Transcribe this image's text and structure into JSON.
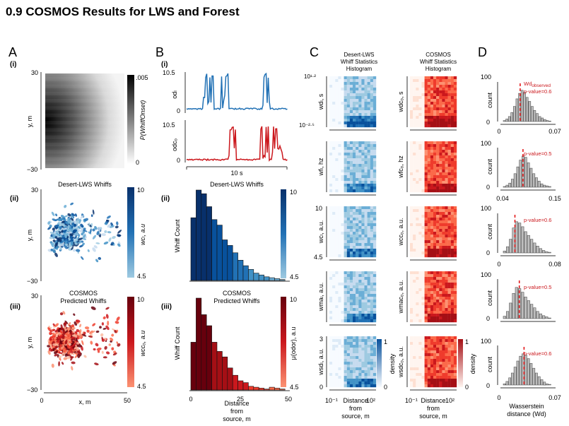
{
  "page_title": "0.9  COSMOS Results for LWS and Forest",
  "panel_letters": [
    "A",
    "B",
    "C",
    "D"
  ],
  "roman": [
    "(i)",
    "(ii)",
    "(iii)"
  ],
  "colors": {
    "blue_dark": "#08306b",
    "blue_mid": "#2171b5",
    "blue_light": "#9ecae1",
    "red_dark": "#67000d",
    "red_mid": "#cb181d",
    "red_light": "#fc9272",
    "gray_hist": "#555555"
  },
  "panelA": {
    "i": {
      "ylabel": "y, m",
      "yticks": [
        "30",
        "−30"
      ],
      "cbar_label": "P(WhiffOnset)",
      "cbar_ticks": [
        ".005",
        "0"
      ]
    },
    "ii": {
      "title": "Desert-LWS Whiffs",
      "ylabel": "y, m",
      "yticks": [
        "30",
        "−30"
      ],
      "cbar_label": "wcₗ, a.u",
      "cbar_ticks": [
        "10",
        "4.5"
      ]
    },
    "iii": {
      "title_line1": "COSMOS",
      "title_line2": "Predicted Whiffs",
      "ylabel": "y, m",
      "yticks": [
        "30",
        "−30"
      ],
      "xlabel": "x, m",
      "xticks": [
        "0",
        "50"
      ],
      "cbar_label": "wcᴄₒ, a.u",
      "cbar_ticks": [
        "10",
        "4.5"
      ]
    }
  },
  "panelB": {
    "i": {
      "top_ylabel": "odₗ",
      "bottom_ylabel": "odᴄₒ",
      "yticks": [
        "10.5",
        "0"
      ],
      "scalebar": "10 s"
    },
    "ii": {
      "title": "Desert-LWS Whiffs",
      "ylabel": "Whiff Count",
      "cbar_ticks": [
        "10",
        "4.5"
      ]
    },
    "iii": {
      "title_line1": "COSMOS",
      "title_line2": "Predicted Whiffs",
      "ylabel": "Whiff Count",
      "cbar_label": "μ(odor), a.u",
      "cbar_ticks": [
        "10",
        "4.5"
      ],
      "xticks": [
        "0",
        "25",
        "50"
      ],
      "xlabel_lines": [
        "Distance",
        "from",
        "source, m"
      ]
    }
  },
  "panelC": {
    "left_title": [
      "Desert-LWS",
      "Whiff Statistics",
      "Histogram"
    ],
    "right_title": [
      "COSMOS",
      "Whiff Statistics",
      "Histogram"
    ],
    "rows": [
      {
        "ylabel_left": "wdₗ, s",
        "ylabel_right": "wdᴄₒ, s",
        "ytop": "10¹·²",
        "ybottom": "10⁻²·⁵"
      },
      {
        "ylabel_left": "wfₗ, hz",
        "ylabel_right": "wfᴄₒ, hz",
        "ytop": "",
        "ybottom": ""
      },
      {
        "ylabel_left": "wcₗ, a.u.",
        "ylabel_right": "wcᴄₒ, a.u.",
        "ytop": "10",
        "ybottom": "4.5"
      },
      {
        "ylabel_left": "wmaₗ, a.u.",
        "ylabel_right": "wmaᴄₒ, a.u.",
        "ytop": "",
        "ybottom": ""
      },
      {
        "ylabel_left": "wsdₗ, a.u.",
        "ylabel_right": "wsdᴄₒ, a.u.",
        "ytop": "3",
        "ybottom": "0"
      }
    ],
    "density_label": "density",
    "density_ticks": [
      "1",
      "0"
    ],
    "xticks": [
      "10⁻¹",
      "10²"
    ],
    "xlabel_lines": [
      "Distance",
      "from",
      "source, m"
    ]
  },
  "panelD": {
    "ylabel": "count",
    "xlabel_lines": [
      "Wasserstein",
      "distance (Wd)"
    ],
    "legend_line1": "Wd",
    "legend_sub": "observed",
    "rows": [
      {
        "pvalue": "p-value=0.6",
        "yticks": [
          "100",
          "0"
        ],
        "xticks": [
          "0",
          "0.07"
        ]
      },
      {
        "pvalue": "p-value=0.5",
        "yticks": [
          "100",
          "0"
        ],
        "xticks": [
          "0.04",
          "0.15"
        ]
      },
      {
        "pvalue": "p-value=0.6",
        "yticks": [
          "100",
          "0"
        ],
        "xticks": [
          "0",
          "0.08"
        ]
      },
      {
        "pvalue": "p-value=0.5",
        "yticks": [
          "100",
          "0"
        ],
        "xticks": [],
        "xticks_missing": true
      },
      {
        "pvalue": "p-value=0.6",
        "yticks": [
          "100",
          "0"
        ],
        "xticks": [
          "0",
          "0.07"
        ]
      }
    ]
  },
  "chart_data": [
    {
      "panel": "B(ii)",
      "type": "bar",
      "title": "Desert-LWS Whiffs",
      "ylabel": "Whiff Count",
      "xlim": [
        0,
        50
      ],
      "bin_width": 2.5,
      "values": [
        68,
        98,
        94,
        80,
        66,
        60,
        44,
        38,
        30,
        22,
        16,
        12,
        8,
        6,
        4,
        3,
        2,
        1
      ]
    },
    {
      "panel": "B(iii)",
      "type": "bar",
      "title": "COSMOS Predicted Whiffs",
      "ylabel": "Whiff Count",
      "xlabel": "Distance from source, m",
      "xlim": [
        0,
        50
      ],
      "bin_width": 2.5,
      "values": [
        52,
        100,
        82,
        70,
        52,
        42,
        36,
        24,
        16,
        10,
        8,
        4,
        3,
        2,
        1,
        3,
        2,
        1
      ]
    },
    {
      "panel": "D",
      "type": "bar",
      "description_rows": [
        {
          "xlim": [
            0,
            0.07
          ],
          "observed": 0.025,
          "values": [
            2,
            5,
            10,
            18,
            30,
            45,
            56,
            62,
            58,
            48,
            40,
            30,
            22,
            16,
            10,
            7,
            4,
            2,
            1
          ]
        },
        {
          "xlim": [
            0.04,
            0.15
          ],
          "observed": 0.085,
          "values": [
            1,
            3,
            6,
            12,
            20,
            30,
            40,
            46,
            44,
            36,
            28,
            20,
            14,
            9,
            5,
            3,
            2,
            1
          ]
        },
        {
          "xlim": [
            0,
            0.08
          ],
          "observed": 0.021,
          "values": [
            3,
            10,
            22,
            40,
            50,
            48,
            42,
            34,
            28,
            22,
            16,
            11,
            7,
            4,
            2,
            1
          ]
        },
        {
          "xlim": [
            0,
            0.07
          ],
          "observed": 0.024,
          "values": [
            4,
            12,
            26,
            42,
            52,
            50,
            44,
            36,
            30,
            24,
            18,
            12,
            8,
            5,
            3,
            1
          ]
        },
        {
          "xlim": [
            0,
            0.07
          ],
          "observed": 0.03,
          "values": [
            2,
            6,
            12,
            20,
            30,
            40,
            48,
            52,
            50,
            44,
            36,
            28,
            20,
            14,
            9,
            5,
            2,
            1
          ]
        }
      ]
    }
  ]
}
